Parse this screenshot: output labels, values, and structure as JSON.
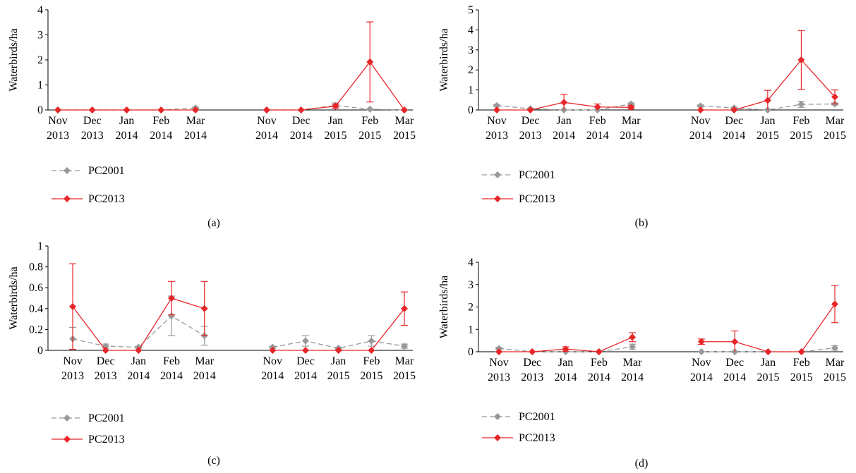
{
  "chart_data": [
    {
      "type": "line",
      "panel_label": "(a)",
      "ylabel": "Waterbirds/ha",
      "ylim": [
        0,
        4
      ],
      "yticks": [
        "0",
        "1",
        "2",
        "3",
        "4"
      ],
      "categories": [
        [
          "Nov",
          "2013"
        ],
        [
          "Dec",
          "2013"
        ],
        [
          "Jan",
          "2014"
        ],
        [
          "Feb",
          "2014"
        ],
        [
          "Mar",
          "2014"
        ],
        [
          "Nov",
          "2014"
        ],
        [
          "Dec",
          "2014"
        ],
        [
          "Jan",
          "2015"
        ],
        [
          "Feb",
          "2015"
        ],
        [
          "Mar",
          "2015"
        ]
      ],
      "legend_position": "bottom-left",
      "series": [
        {
          "name": "PC2001",
          "color": "#999999",
          "dashed": true,
          "values": [
            0,
            0,
            0,
            0,
            0.08,
            0,
            0,
            0.18,
            0.03,
            0
          ],
          "errors": [
            0,
            0,
            0,
            0,
            0.03,
            0,
            0,
            0.1,
            0.02,
            0
          ]
        },
        {
          "name": "PC2013",
          "color": "#e8262a",
          "dashed": false,
          "values": [
            0,
            0,
            0,
            0,
            0,
            0,
            0,
            0.15,
            1.92,
            0
          ],
          "errors": [
            0,
            0,
            0,
            0,
            0,
            0,
            0,
            0.08,
            1.6,
            0
          ]
        }
      ]
    },
    {
      "type": "line",
      "panel_label": "(b)",
      "ylabel": "Waterbirds/ha",
      "ylim": [
        0,
        5
      ],
      "yticks": [
        "0",
        "1",
        "2",
        "3",
        "4",
        "5"
      ],
      "categories": [
        [
          "Nov",
          "2013"
        ],
        [
          "Dec",
          "2013"
        ],
        [
          "Jan",
          "2014"
        ],
        [
          "Feb",
          "2014"
        ],
        [
          "Mar",
          "2014"
        ],
        [
          "Nov",
          "2014"
        ],
        [
          "Dec",
          "2014"
        ],
        [
          "Jan",
          "2015"
        ],
        [
          "Feb",
          "2015"
        ],
        [
          "Mar",
          "2015"
        ]
      ],
      "legend_position": "bottom-left",
      "series": [
        {
          "name": "PC2001",
          "color": "#999999",
          "dashed": true,
          "values": [
            0.22,
            0.06,
            0,
            0,
            0.3,
            0.2,
            0.1,
            0,
            0.28,
            0.3
          ],
          "errors": [
            0.05,
            0.03,
            0,
            0,
            0.05,
            0.05,
            0.04,
            0,
            0.15,
            0.05
          ]
        },
        {
          "name": "PC2013",
          "color": "#e8262a",
          "dashed": false,
          "values": [
            0,
            0,
            0.38,
            0.15,
            0.13,
            0,
            0,
            0.48,
            2.5,
            0.65
          ],
          "errors": [
            0,
            0,
            0.4,
            0.15,
            0.08,
            0,
            0,
            0.5,
            1.47,
            0.35
          ]
        }
      ]
    },
    {
      "type": "line",
      "panel_label": "(c)",
      "ylabel": "Waterbirds/ha",
      "ylim": [
        0,
        1
      ],
      "yticks": [
        "0",
        "0.2",
        "0.4",
        "0.6",
        "0.8",
        "1"
      ],
      "categories": [
        [
          "Nov",
          "2013"
        ],
        [
          "Dec",
          "2013"
        ],
        [
          "Jan",
          "2014"
        ],
        [
          "Feb",
          "2014"
        ],
        [
          "Mar",
          "2014"
        ],
        [
          "Nov",
          "2014"
        ],
        [
          "Dec",
          "2014"
        ],
        [
          "Jan",
          "2015"
        ],
        [
          "Feb",
          "2015"
        ],
        [
          "Mar",
          "2015"
        ]
      ],
      "legend_position": "bottom-left",
      "series": [
        {
          "name": "PC2001",
          "color": "#999999",
          "dashed": true,
          "values": [
            0.11,
            0.04,
            0.03,
            0.33,
            0.14,
            0.03,
            0.09,
            0.02,
            0.09,
            0.04
          ],
          "errors": [
            0.11,
            0.02,
            0.01,
            0.19,
            0.09,
            0.01,
            0.05,
            0.01,
            0.05,
            0.02
          ]
        },
        {
          "name": "PC2013",
          "color": "#e8262a",
          "dashed": false,
          "values": [
            0.42,
            0,
            0,
            0.5,
            0.4,
            0,
            0,
            0,
            0,
            0.4
          ],
          "errors": [
            0.41,
            0,
            0,
            0.16,
            0.26,
            0,
            0,
            0,
            0,
            0.16
          ]
        }
      ]
    },
    {
      "type": "line",
      "panel_label": "(d)",
      "ylabel": "Waterbirds/ha",
      "ylim": [
        0,
        4
      ],
      "yticks": [
        "0",
        "1",
        "2",
        "3",
        "4"
      ],
      "categories": [
        [
          "Nov",
          "2013"
        ],
        [
          "Dec",
          "2013"
        ],
        [
          "Jan",
          "2014"
        ],
        [
          "Feb",
          "2014"
        ],
        [
          "Mar",
          "2014"
        ],
        [
          "Nov",
          "2014"
        ],
        [
          "Dec",
          "2014"
        ],
        [
          "Jan",
          "2015"
        ],
        [
          "Feb",
          "2015"
        ],
        [
          "Mar",
          "2015"
        ]
      ],
      "legend_position": "bottom-left",
      "series": [
        {
          "name": "PC2001",
          "color": "#999999",
          "dashed": true,
          "values": [
            0.15,
            0,
            0,
            0,
            0.22,
            0,
            0,
            0,
            0,
            0.17
          ],
          "errors": [
            0.05,
            0,
            0,
            0,
            0.12,
            0,
            0,
            0,
            0,
            0.1
          ]
        },
        {
          "name": "PC2013",
          "color": "#e8262a",
          "dashed": false,
          "values": [
            0,
            0,
            0.12,
            0,
            0.65,
            0.45,
            0.45,
            0,
            0,
            2.13
          ],
          "errors": [
            0,
            0,
            0.1,
            0,
            0.2,
            0.12,
            0.48,
            0,
            0,
            0.83
          ]
        }
      ]
    }
  ]
}
